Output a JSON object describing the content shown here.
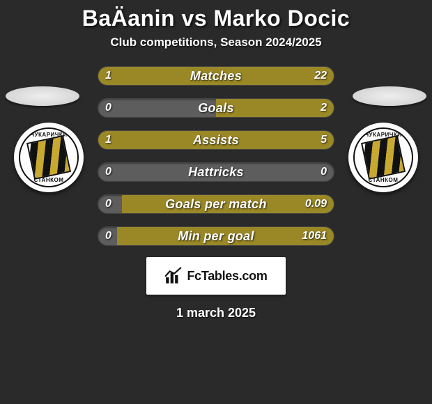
{
  "title": "BaÄanin vs Marko Docic",
  "subtitle": "Club competitions, Season 2024/2025",
  "date": "1 march 2025",
  "brand": "FcTables.com",
  "colors": {
    "player_a": "#9a8826",
    "player_b": "#9a8826",
    "bar_bg": "#5d5d5d",
    "page_bg": "#2a2a2a",
    "badge_stripe_dark": "#111111",
    "badge_stripe_gold": "#c8a92f"
  },
  "club_badge": {
    "top_text": "ЧУКАРИЧКИ",
    "bottom_text": "СТАНКОМ"
  },
  "stats": [
    {
      "label": "Matches",
      "a": "1",
      "b": "22",
      "fill_a_pct": 8,
      "fill_b_pct": 92
    },
    {
      "label": "Goals",
      "a": "0",
      "b": "2",
      "fill_a_pct": 0,
      "fill_b_pct": 50
    },
    {
      "label": "Assists",
      "a": "1",
      "b": "5",
      "fill_a_pct": 10,
      "fill_b_pct": 90
    },
    {
      "label": "Hattricks",
      "a": "0",
      "b": "0",
      "fill_a_pct": 0,
      "fill_b_pct": 0
    },
    {
      "label": "Goals per match",
      "a": "0",
      "b": "0.09",
      "fill_a_pct": 0,
      "fill_b_pct": 90
    },
    {
      "label": "Min per goal",
      "a": "0",
      "b": "1061",
      "fill_a_pct": 0,
      "fill_b_pct": 92
    }
  ]
}
